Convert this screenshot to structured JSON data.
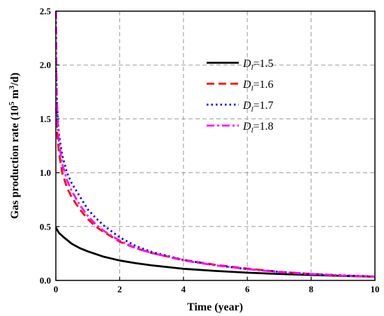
{
  "chart_data": {
    "type": "line",
    "xlabel": "Time (year)",
    "ylabel": {
      "prefix": "Gas production rate (10",
      "exp1": "5",
      "mid": " m",
      "exp2": "3",
      "suffix": "/d)"
    },
    "xlim": [
      0,
      10
    ],
    "ylim": [
      0,
      2.5
    ],
    "xticks": [
      0,
      2,
      4,
      6,
      8,
      10
    ],
    "yticks": [
      0.0,
      0.5,
      1.0,
      1.5,
      2.0,
      2.5
    ],
    "ytick_labels": [
      "0.0",
      "0.5",
      "1.0",
      "1.5",
      "2.0",
      "2.5"
    ],
    "grid": true,
    "legend_position": "upper-right",
    "series": [
      {
        "name": "D_l=1.5",
        "label_sym": "D",
        "label_sub": "l",
        "label_val": "=1.5",
        "color": "#000000",
        "dash": "solid",
        "x": [
          0,
          0.1,
          0.25,
          0.5,
          0.75,
          1,
          1.5,
          2,
          2.5,
          3,
          4,
          5,
          6,
          7,
          8,
          9,
          10
        ],
        "y": [
          0.49,
          0.44,
          0.4,
          0.34,
          0.3,
          0.27,
          0.22,
          0.185,
          0.16,
          0.14,
          0.108,
          0.088,
          0.072,
          0.06,
          0.05,
          0.042,
          0.035
        ]
      },
      {
        "name": "D_l=1.6",
        "label_sym": "D",
        "label_sub": "l",
        "label_val": "=1.6",
        "color": "#ff0000",
        "dash": "dash",
        "x": [
          0.01,
          0.03,
          0.06,
          0.1,
          0.2,
          0.35,
          0.5,
          0.75,
          1,
          1.25,
          1.5,
          2,
          2.5,
          3,
          4,
          5,
          6,
          7,
          8,
          9,
          10
        ],
        "y": [
          1.6,
          1.45,
          1.3,
          1.18,
          1.0,
          0.86,
          0.77,
          0.66,
          0.57,
          0.5,
          0.45,
          0.36,
          0.3,
          0.255,
          0.19,
          0.145,
          0.11,
          0.08,
          0.06,
          0.045,
          0.035
        ]
      },
      {
        "name": "D_l=1.7",
        "label_sym": "D",
        "label_sub": "l",
        "label_val": "=1.7",
        "color": "#0000ff",
        "dash": "dot",
        "x": [
          0.01,
          0.03,
          0.06,
          0.1,
          0.2,
          0.35,
          0.5,
          0.75,
          1,
          1.25,
          1.5,
          2,
          2.5,
          3,
          4,
          5,
          6,
          7,
          8,
          9,
          10
        ],
        "y": [
          1.95,
          1.7,
          1.5,
          1.35,
          1.16,
          1.0,
          0.9,
          0.78,
          0.66,
          0.58,
          0.51,
          0.4,
          0.32,
          0.265,
          0.19,
          0.14,
          0.105,
          0.08,
          0.06,
          0.047,
          0.037
        ]
      },
      {
        "name": "D_l=1.8",
        "label_sym": "D",
        "label_sub": "l",
        "label_val": "=1.8",
        "color": "#ff00ff",
        "dash": "dashdot",
        "x": [
          0.005,
          0.015,
          0.03,
          0.06,
          0.1,
          0.2,
          0.35,
          0.5,
          0.75,
          1,
          1.25,
          1.5,
          2,
          2.5,
          3,
          4,
          5,
          6,
          7,
          8,
          9,
          10
        ],
        "y": [
          2.5,
          2.0,
          1.7,
          1.45,
          1.28,
          1.08,
          0.93,
          0.83,
          0.7,
          0.6,
          0.52,
          0.46,
          0.37,
          0.3,
          0.255,
          0.185,
          0.14,
          0.105,
          0.078,
          0.058,
          0.045,
          0.035
        ]
      }
    ]
  }
}
